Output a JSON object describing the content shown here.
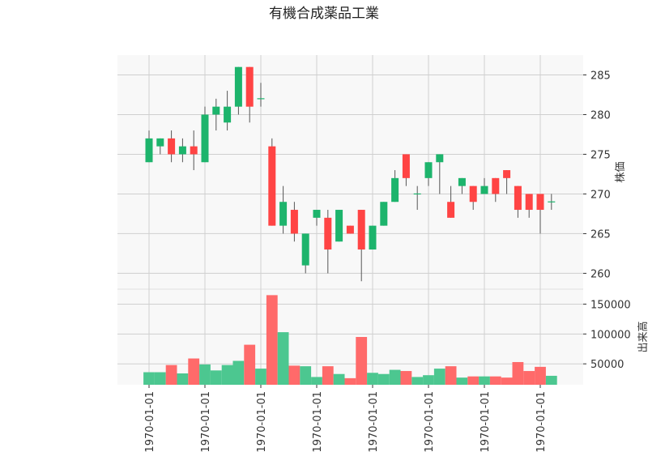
{
  "chart_data": {
    "type": "candlestick",
    "title": "有機合成薬品工業",
    "price_ylabel": "株価",
    "volume_ylabel": "出来高",
    "price_ylim": [
      258,
      287.5
    ],
    "price_ticks": [
      260,
      265,
      270,
      275,
      280,
      285
    ],
    "volume_ylim": [
      15000,
      175000
    ],
    "volume_ticks": [
      50000,
      100000,
      150000
    ],
    "x_tick_labels": [
      "1970-01-01",
      "1970-01-01",
      "1970-01-01",
      "1970-01-01",
      "1970-01-01",
      "1970-01-01",
      "1970-01-01",
      "1970-01-01"
    ],
    "x_tick_indices": [
      0,
      5,
      10,
      15,
      20,
      25,
      30,
      35
    ],
    "up_color": "#1db46c",
    "down_color": "#ff4444",
    "up_volume_color": "#4cc790",
    "down_volume_color": "#ff6a6a",
    "background": "#f8f8f8",
    "grid": true,
    "candles": [
      {
        "open": 274,
        "high": 278,
        "low": 274,
        "close": 277,
        "volume": 36000
      },
      {
        "open": 276,
        "high": 277,
        "low": 275,
        "close": 277,
        "volume": 36000
      },
      {
        "open": 277,
        "high": 278,
        "low": 274,
        "close": 275,
        "volume": 48000
      },
      {
        "open": 275,
        "high": 277,
        "low": 274,
        "close": 276,
        "volume": 34000
      },
      {
        "open": 276,
        "high": 278,
        "low": 273,
        "close": 275,
        "volume": 59000
      },
      {
        "open": 274,
        "high": 281,
        "low": 274,
        "close": 280,
        "volume": 49000
      },
      {
        "open": 280,
        "high": 282,
        "low": 278,
        "close": 281,
        "volume": 39000
      },
      {
        "open": 279,
        "high": 283,
        "low": 278,
        "close": 281,
        "volume": 48000
      },
      {
        "open": 281,
        "high": 286,
        "low": 280,
        "close": 286,
        "volume": 55000
      },
      {
        "open": 286,
        "high": 286,
        "low": 279,
        "close": 281,
        "volume": 82000
      },
      {
        "open": 282,
        "high": 284,
        "low": 281,
        "close": 282,
        "volume": 42000
      },
      {
        "open": 276,
        "high": 277,
        "low": 266,
        "close": 266,
        "volume": 165000
      },
      {
        "open": 266,
        "high": 271,
        "low": 265,
        "close": 269,
        "volume": 103000
      },
      {
        "open": 268,
        "high": 269,
        "low": 264,
        "close": 265,
        "volume": 47000
      },
      {
        "open": 261,
        "high": 265,
        "low": 260,
        "close": 265,
        "volume": 46000
      },
      {
        "open": 267,
        "high": 268,
        "low": 266,
        "close": 268,
        "volume": 28000
      },
      {
        "open": 267,
        "high": 268,
        "low": 260,
        "close": 263,
        "volume": 46000
      },
      {
        "open": 264,
        "high": 268,
        "low": 264,
        "close": 268,
        "volume": 33000
      },
      {
        "open": 266,
        "high": 266,
        "low": 265,
        "close": 265,
        "volume": 26000
      },
      {
        "open": 268,
        "high": 268,
        "low": 259,
        "close": 263,
        "volume": 95000
      },
      {
        "open": 263,
        "high": 266,
        "low": 263,
        "close": 266,
        "volume": 35000
      },
      {
        "open": 266,
        "high": 269,
        "low": 266,
        "close": 269,
        "volume": 33000
      },
      {
        "open": 269,
        "high": 273,
        "low": 269,
        "close": 272,
        "volume": 40000
      },
      {
        "open": 275,
        "high": 275,
        "low": 271,
        "close": 272,
        "volume": 38000
      },
      {
        "open": 270,
        "high": 271,
        "low": 268,
        "close": 270,
        "volume": 28000
      },
      {
        "open": 272,
        "high": 274,
        "low": 271,
        "close": 274,
        "volume": 31000
      },
      {
        "open": 274,
        "high": 275,
        "low": 270,
        "close": 275,
        "volume": 42000
      },
      {
        "open": 269,
        "high": 271,
        "low": 267,
        "close": 267,
        "volume": 46000
      },
      {
        "open": 271,
        "high": 272,
        "low": 270,
        "close": 272,
        "volume": 27000
      },
      {
        "open": 271,
        "high": 271,
        "low": 268,
        "close": 269,
        "volume": 29000
      },
      {
        "open": 270,
        "high": 272,
        "low": 270,
        "close": 271,
        "volume": 29000
      },
      {
        "open": 272,
        "high": 272,
        "low": 269,
        "close": 270,
        "volume": 29000
      },
      {
        "open": 273,
        "high": 273,
        "low": 270,
        "close": 272,
        "volume": 27000
      },
      {
        "open": 271,
        "high": 271,
        "low": 267,
        "close": 268,
        "volume": 53000
      },
      {
        "open": 270,
        "high": 270,
        "low": 267,
        "close": 268,
        "volume": 38000
      },
      {
        "open": 270,
        "high": 270,
        "low": 265,
        "close": 268,
        "volume": 45000
      },
      {
        "open": 269,
        "high": 270,
        "low": 268,
        "close": 269,
        "volume": 30000
      }
    ]
  }
}
